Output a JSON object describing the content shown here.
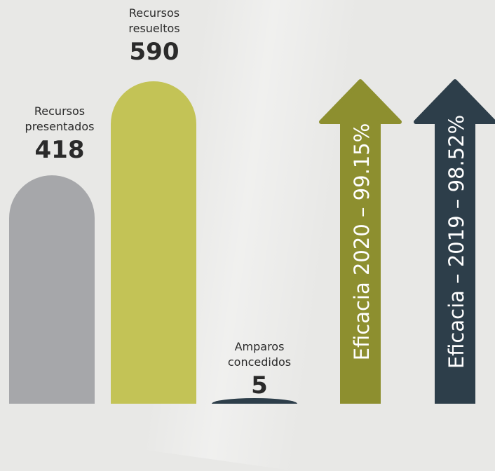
{
  "chart_data": {
    "type": "bar",
    "title": "",
    "xlabel": "",
    "ylabel": "",
    "ylim": [
      0,
      590
    ],
    "categories": [
      "Recursos presentados",
      "Recursos resueltos",
      "Amparos concedidos"
    ],
    "category_lines": [
      [
        "Recursos",
        "presentados"
      ],
      [
        "Recursos",
        "resueltos"
      ],
      [
        "Amparos",
        "concedidos"
      ]
    ],
    "values": [
      418,
      590,
      5
    ],
    "value_labels": [
      "418",
      "590",
      "5"
    ],
    "colors": [
      "#a6a7aa",
      "#c3c356",
      "#2d3e4a"
    ],
    "arrows": [
      {
        "label": "Eficacia 2020 – 99.15%",
        "value": 99.15,
        "unit": "%",
        "color": "#8d8f2f"
      },
      {
        "label": "Eficacia – 2019 – 98.52%",
        "value": 98.52,
        "unit": "%",
        "color": "#2d3e4a"
      }
    ]
  },
  "colors": {
    "background": "#e8e8e6",
    "text": "#2a2a2a",
    "arrow_text": "#ffffff"
  }
}
